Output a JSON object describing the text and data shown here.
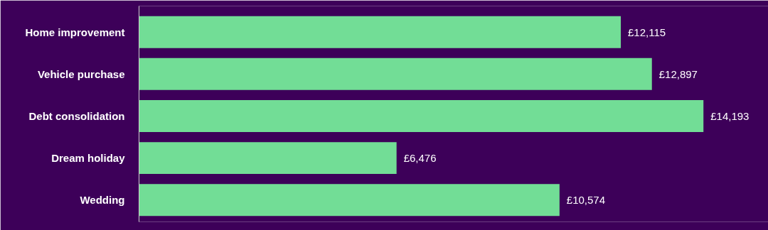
{
  "chart_data": {
    "type": "bar",
    "orientation": "horizontal",
    "categories": [
      "Home improvement",
      "Vehicle purchase",
      "Debt consolidation",
      "Dream holiday",
      "Wedding"
    ],
    "values": [
      12115,
      12897,
      14193,
      6476,
      10574
    ],
    "value_labels": [
      "£12,115",
      "£12,897",
      "£14,193",
      "£6,476",
      "£10,574"
    ],
    "color": "#72dd96",
    "grid": false,
    "tick_labels": "y"
  }
}
